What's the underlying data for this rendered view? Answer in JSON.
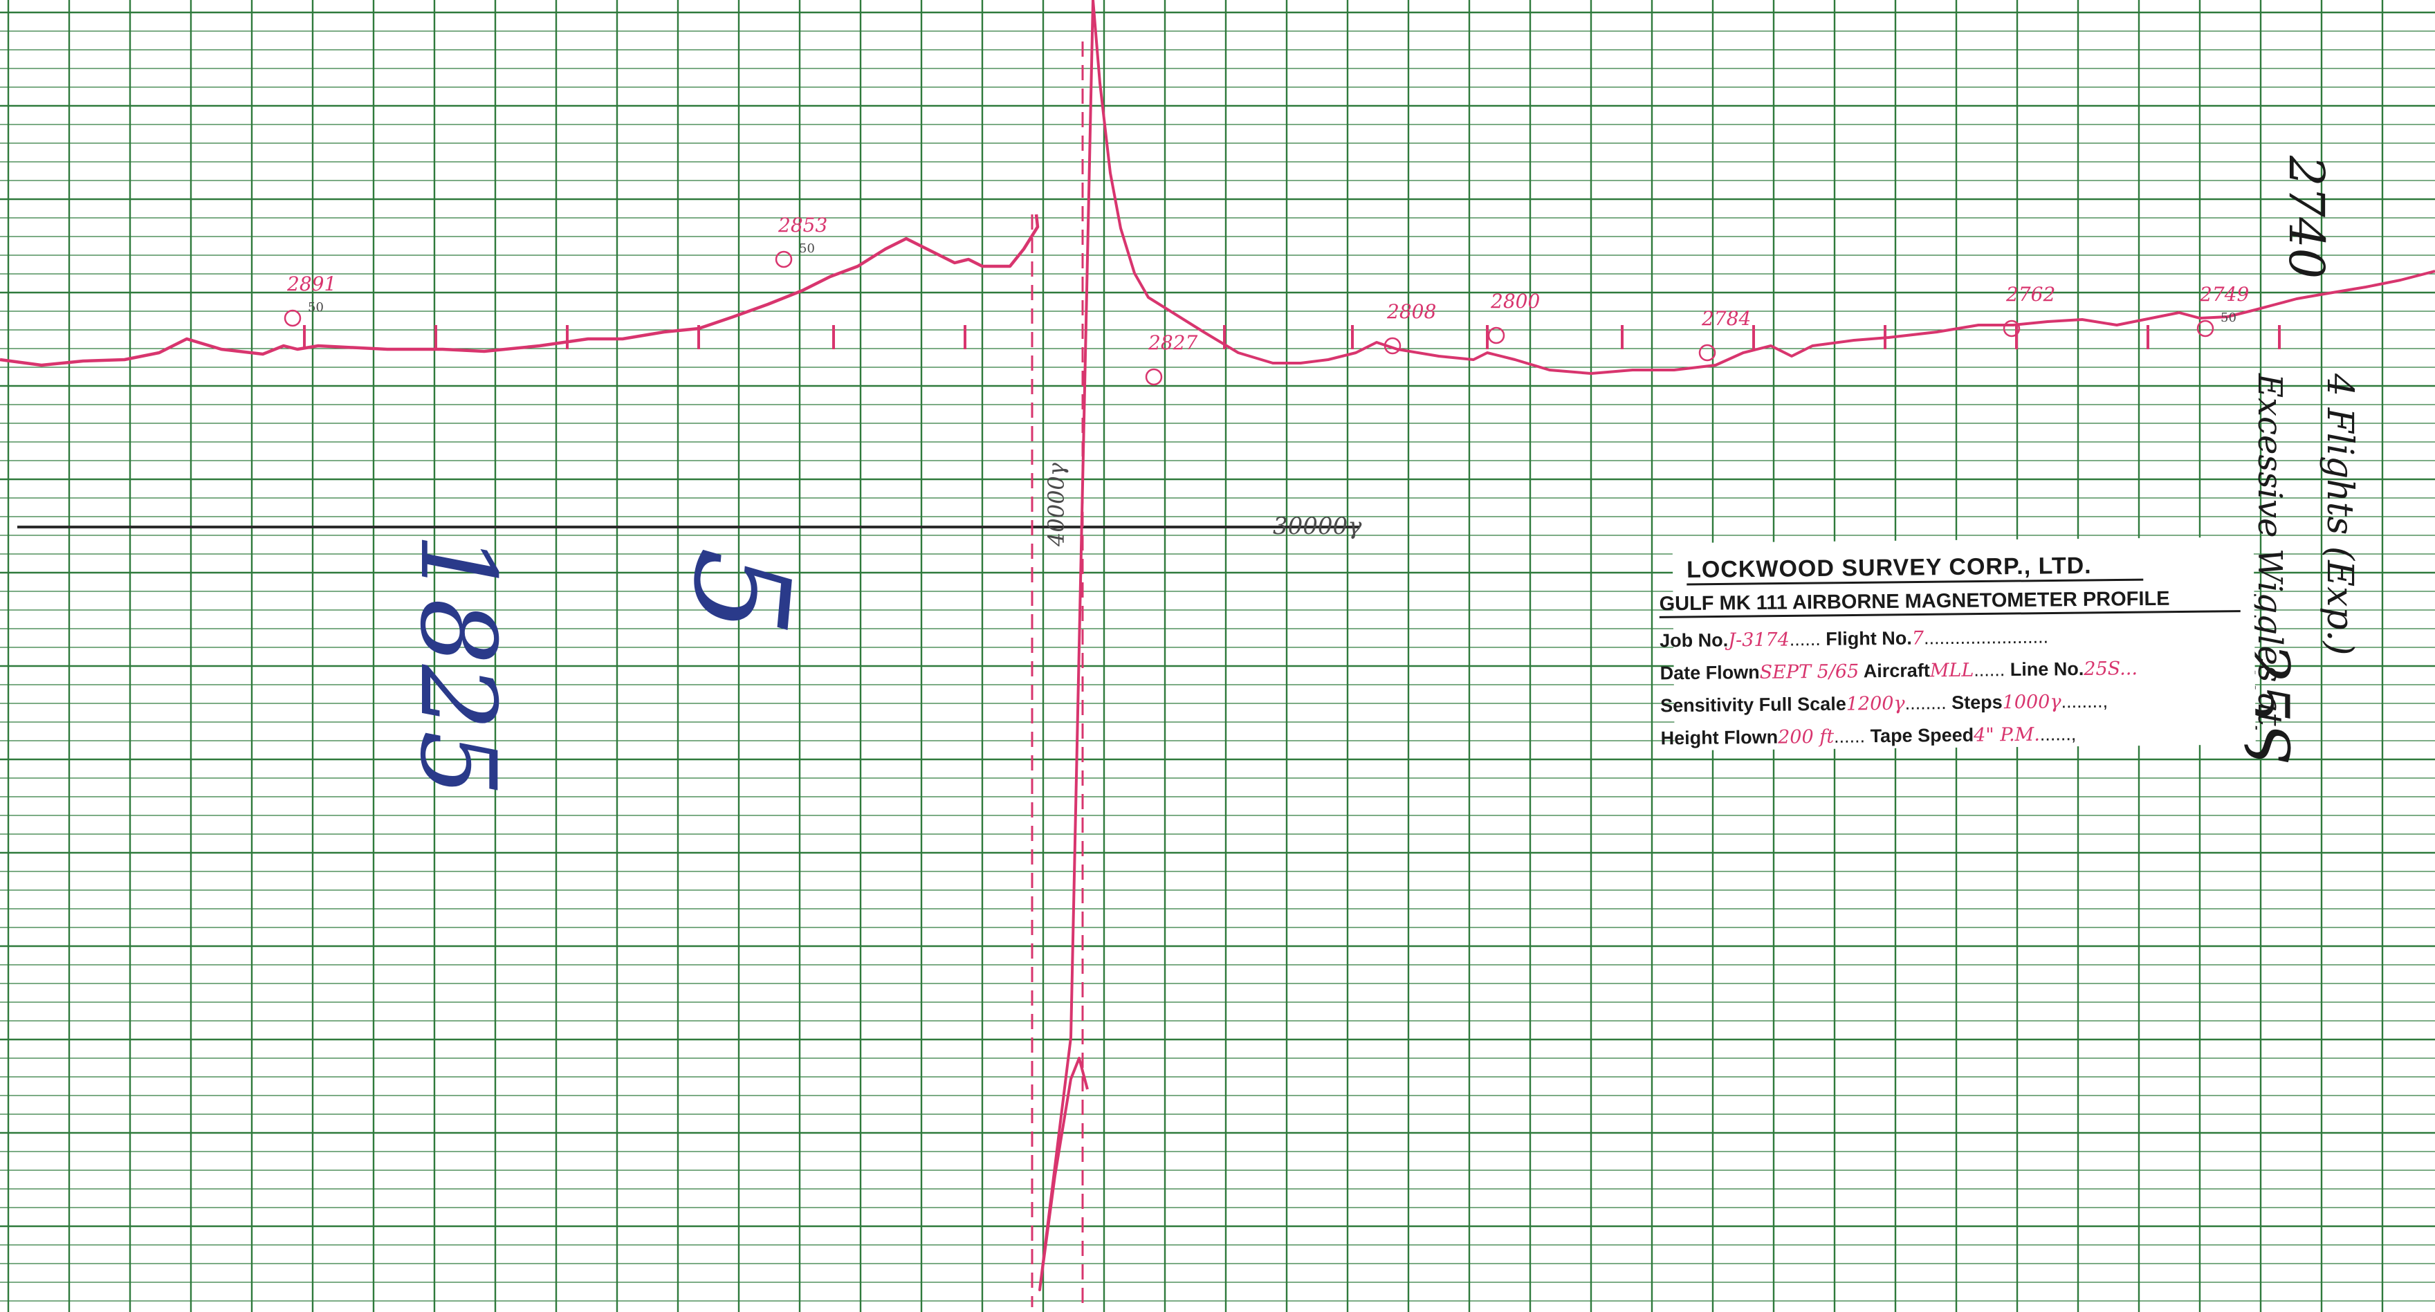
{
  "colors": {
    "paper": "#ffffff",
    "grid_green": "#2f7a3c",
    "trace_red": "#d8356e",
    "pencil": "#4a4a4a",
    "blue_ink": "#2a3a8a",
    "ink_black": "#1a1a1a"
  },
  "profile": {
    "readings": [
      {
        "label": "2891",
        "sub": "50"
      },
      {
        "label": "2853",
        "sub": "50"
      },
      {
        "label": "2827",
        "sub": ""
      },
      {
        "label": "2808",
        "sub": ""
      },
      {
        "label": "2800",
        "sub": ""
      },
      {
        "label": "2784",
        "sub": ""
      },
      {
        "label": "2762",
        "sub": ""
      },
      {
        "label": "2749",
        "sub": "50"
      }
    ],
    "reference_level_label": "30000γ",
    "vertical_mark_label": "40000γ"
  },
  "title_block": {
    "company": "LOCKWOOD SURVEY CORP., LTD.",
    "subtitle": "GULF MK 111 AIRBORNE MAGNETOMETER PROFILE",
    "rows": [
      [
        {
          "label": "Job No.",
          "value": "J-3174",
          "dots": "......"
        },
        {
          "label": "Flight No.",
          "value": "7",
          "dots": "........................"
        }
      ],
      [
        {
          "label": "Date Flown",
          "value": "SEPT 5/65",
          "dots": ""
        },
        {
          "label": "Aircraft",
          "value": "MLL",
          "dots": "......"
        },
        {
          "label": "Line No.",
          "value": "25S...",
          "dots": ""
        }
      ],
      [
        {
          "label": "Sensitivity  Full Scale",
          "value": "1200γ",
          "dots": "........"
        },
        {
          "label": "Steps",
          "value": "1000γ",
          "dots": "........,"
        }
      ],
      [
        {
          "label": "Height Flown",
          "value": "200 ft",
          "dots": "......"
        },
        {
          "label": "Tape Speed",
          "value": "4\" P.M.",
          "dots": "......,"
        }
      ]
    ]
  },
  "annotations": {
    "blue_left": "1825",
    "blue_mid": "5",
    "right_top": "2740",
    "right_side_1": "25S",
    "right_side_2": "Excessive Wiggles at",
    "right_side_3": "4 Flights (Exp.)"
  }
}
